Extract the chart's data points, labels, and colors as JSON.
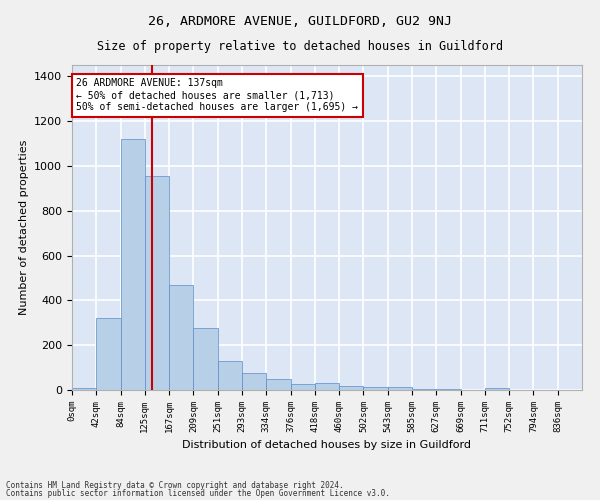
{
  "title": "26, ARDMORE AVENUE, GUILDFORD, GU2 9NJ",
  "subtitle": "Size of property relative to detached houses in Guildford",
  "xlabel": "Distribution of detached houses by size in Guildford",
  "ylabel": "Number of detached properties",
  "footer1": "Contains HM Land Registry data © Crown copyright and database right 2024.",
  "footer2": "Contains public sector information licensed under the Open Government Licence v3.0.",
  "bar_labels": [
    "0sqm",
    "42sqm",
    "84sqm",
    "125sqm",
    "167sqm",
    "209sqm",
    "251sqm",
    "293sqm",
    "334sqm",
    "376sqm",
    "418sqm",
    "460sqm",
    "502sqm",
    "543sqm",
    "585sqm",
    "627sqm",
    "669sqm",
    "711sqm",
    "752sqm",
    "794sqm",
    "836sqm"
  ],
  "bar_values": [
    8,
    320,
    1120,
    955,
    470,
    275,
    130,
    78,
    48,
    25,
    30,
    20,
    15,
    12,
    5,
    5,
    0,
    10,
    0,
    0,
    0
  ],
  "bar_color": "#b8cfe8",
  "bar_edge_color": "#5b8cc8",
  "bg_color": "#dce6f5",
  "grid_color": "#ffffff",
  "vline_x": 3.29,
  "vline_color": "#cc0000",
  "annotation_line1": "26 ARDMORE AVENUE: 137sqm",
  "annotation_line2": "← 50% of detached houses are smaller (1,713)",
  "annotation_line3": "50% of semi-detached houses are larger (1,695) →",
  "annotation_box_color": "#ffffff",
  "annotation_box_edge": "#cc0000",
  "ylim": [
    0,
    1450
  ],
  "yticks": [
    0,
    200,
    400,
    600,
    800,
    1000,
    1200,
    1400
  ],
  "fig_facecolor": "#f0f0f0"
}
